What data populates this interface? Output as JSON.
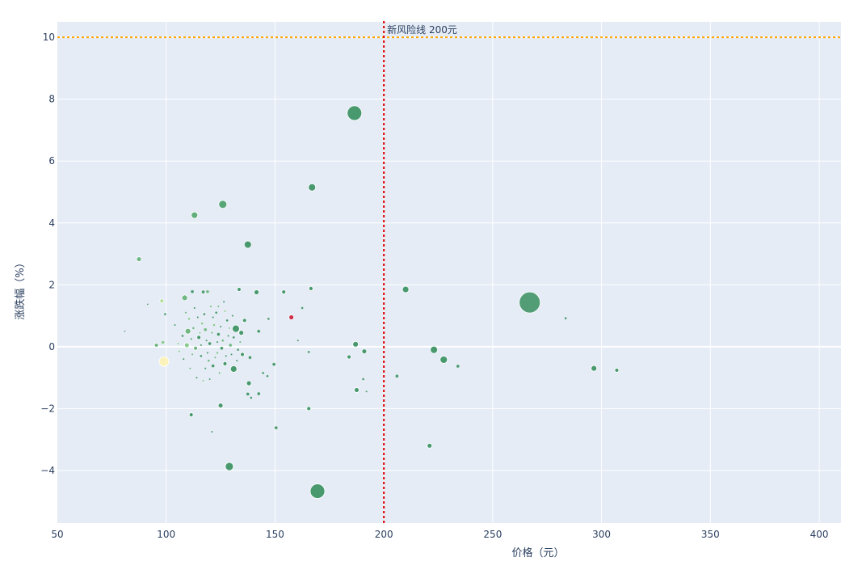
{
  "chart_data": {
    "type": "scatter",
    "xlabel": "价格（元）",
    "ylabel": "涨跌幅（%）",
    "xlim": [
      50,
      410
    ],
    "ylim": [
      -5.7,
      10.5
    ],
    "x_ticks": [
      50,
      100,
      150,
      200,
      250,
      300,
      350,
      400
    ],
    "y_ticks": [
      -4,
      -2,
      0,
      2,
      4,
      6,
      8,
      10
    ],
    "grid": true,
    "colors": {
      "plot_bg": "#e5ecf6",
      "grid": "#ffffff",
      "text": "#2a3f5f",
      "hline": "#ffa500",
      "vline": "#dd0000"
    },
    "reference_lines": {
      "horizontal": {
        "y": 10
      },
      "vertical": {
        "x": 200,
        "label": "新风险线 200元"
      }
    },
    "points": [
      {
        "x": 186.5,
        "y": 7.55,
        "s": 9,
        "c": "#2e8b57"
      },
      {
        "x": 267,
        "y": 1.43,
        "s": 13,
        "c": "#3a8f5f"
      },
      {
        "x": 169.5,
        "y": -4.67,
        "s": 9,
        "c": "#2e8b57"
      },
      {
        "x": 167,
        "y": 5.15,
        "s": 4.5,
        "c": "#2e8b57"
      },
      {
        "x": 126,
        "y": 4.6,
        "s": 5,
        "c": "#3f9a62"
      },
      {
        "x": 113,
        "y": 4.25,
        "s": 4,
        "c": "#4aa366"
      },
      {
        "x": 137.5,
        "y": 3.3,
        "s": 4.5,
        "c": "#2e8b57"
      },
      {
        "x": 87.5,
        "y": 2.83,
        "s": 3,
        "c": "#5cae6e"
      },
      {
        "x": 129,
        "y": -3.87,
        "s": 5,
        "c": "#2e8b57"
      },
      {
        "x": 210,
        "y": 1.85,
        "s": 4,
        "c": "#2e8b57"
      },
      {
        "x": 223,
        "y": -0.1,
        "s": 4.5,
        "c": "#2e8b57"
      },
      {
        "x": 227.5,
        "y": -0.42,
        "s": 4.5,
        "c": "#2e8b57"
      },
      {
        "x": 296.5,
        "y": -0.7,
        "s": 3.5,
        "c": "#2e8b57"
      },
      {
        "x": 307,
        "y": -0.76,
        "s": 2.5,
        "c": "#2e8b57"
      },
      {
        "x": 283.5,
        "y": 0.92,
        "s": 1.5,
        "c": "#2e8b57"
      },
      {
        "x": 234,
        "y": -0.63,
        "s": 2,
        "c": "#2e8b57"
      },
      {
        "x": 221,
        "y": -3.2,
        "s": 3,
        "c": "#2e8b57"
      },
      {
        "x": 206,
        "y": -0.95,
        "s": 2,
        "c": "#2e8b57"
      },
      {
        "x": 187,
        "y": 0.08,
        "s": 3.5,
        "c": "#2e8b57"
      },
      {
        "x": 191,
        "y": -0.15,
        "s": 3,
        "c": "#2e8b57"
      },
      {
        "x": 184,
        "y": -0.33,
        "s": 2.5,
        "c": "#2e8b57"
      },
      {
        "x": 187.5,
        "y": -1.4,
        "s": 3,
        "c": "#2e8b57"
      },
      {
        "x": 190.5,
        "y": -1.05,
        "s": 1.5,
        "c": "#2e8b57"
      },
      {
        "x": 192,
        "y": -1.45,
        "s": 1.2,
        "c": "#2e8b57"
      },
      {
        "x": 166.5,
        "y": 1.88,
        "s": 2.5,
        "c": "#2e8b57"
      },
      {
        "x": 154,
        "y": 1.77,
        "s": 2.5,
        "c": "#2e8b57"
      },
      {
        "x": 141.5,
        "y": 1.76,
        "s": 3,
        "c": "#2e8b57"
      },
      {
        "x": 133.5,
        "y": 1.85,
        "s": 2.5,
        "c": "#2e8b57"
      },
      {
        "x": 157.5,
        "y": 0.95,
        "s": 3,
        "c": "#c8102e"
      },
      {
        "x": 162.5,
        "y": 1.25,
        "s": 1.5,
        "c": "#2e8b57"
      },
      {
        "x": 165.5,
        "y": -2.0,
        "s": 2.5,
        "c": "#2e8b57"
      },
      {
        "x": 150.5,
        "y": -2.62,
        "s": 2,
        "c": "#2e8b57"
      },
      {
        "x": 165.5,
        "y": -0.17,
        "s": 1.5,
        "c": "#2e8b57"
      },
      {
        "x": 160.5,
        "y": 0.2,
        "s": 1.2,
        "c": "#2e8b57"
      },
      {
        "x": 149.5,
        "y": -0.57,
        "s": 2,
        "c": "#2e8b57"
      },
      {
        "x": 131,
        "y": -0.72,
        "s": 4,
        "c": "#2e8b57"
      },
      {
        "x": 132,
        "y": 0.58,
        "s": 4.5,
        "c": "#2e8b57"
      },
      {
        "x": 138,
        "y": -1.18,
        "s": 3,
        "c": "#2e8b57"
      },
      {
        "x": 125,
        "y": -1.9,
        "s": 3,
        "c": "#2e8b57"
      },
      {
        "x": 111.5,
        "y": -2.2,
        "s": 2.5,
        "c": "#2e8b57"
      },
      {
        "x": 121,
        "y": -2.75,
        "s": 1.2,
        "c": "#2e8b57"
      },
      {
        "x": 99,
        "y": -0.48,
        "s": 6,
        "c": "#fff3b0"
      },
      {
        "x": 98.5,
        "y": 0.14,
        "s": 2,
        "c": "#7bc47f"
      },
      {
        "x": 98,
        "y": 1.48,
        "s": 2.5,
        "c": "#a8d98a"
      },
      {
        "x": 95.5,
        "y": 0.05,
        "s": 2.5,
        "c": "#5cae6e"
      },
      {
        "x": 108.5,
        "y": 1.58,
        "s": 3.5,
        "c": "#5cae6e"
      },
      {
        "x": 110,
        "y": 0.5,
        "s": 3.5,
        "c": "#5cae6e"
      },
      {
        "x": 109.5,
        "y": 0.05,
        "s": 3,
        "c": "#7bc47f"
      },
      {
        "x": 134.5,
        "y": 0.45,
        "s": 3,
        "c": "#2e8b57"
      },
      {
        "x": 135,
        "y": -0.25,
        "s": 2.5,
        "c": "#2e8b57"
      },
      {
        "x": 136,
        "y": 0.85,
        "s": 2.5,
        "c": "#2e8b57"
      },
      {
        "x": 142.5,
        "y": 0.5,
        "s": 2,
        "c": "#2e8b57"
      },
      {
        "x": 147,
        "y": 0.9,
        "s": 1.5,
        "c": "#2e8b57"
      },
      {
        "x": 138.5,
        "y": -0.35,
        "s": 2,
        "c": "#2e8b57"
      },
      {
        "x": 144.5,
        "y": -0.85,
        "s": 1.5,
        "c": "#2e8b57"
      },
      {
        "x": 146.5,
        "y": -0.95,
        "s": 1.5,
        "c": "#2e8b57"
      },
      {
        "x": 142.5,
        "y": -1.52,
        "s": 2,
        "c": "#2e8b57"
      },
      {
        "x": 137.5,
        "y": -1.53,
        "s": 2,
        "c": "#2e8b57"
      },
      {
        "x": 139,
        "y": -1.65,
        "s": 1.5,
        "c": "#2e8b57"
      },
      {
        "x": 127,
        "y": -0.55,
        "s": 2.5,
        "c": "#2e8b57"
      },
      {
        "x": 117,
        "y": 1.77,
        "s": 2,
        "c": "#2e8b57"
      },
      {
        "x": 119,
        "y": 1.78,
        "s": 2,
        "c": "#5cae6e"
      },
      {
        "x": 112,
        "y": 1.78,
        "s": 2,
        "c": "#2e8b57"
      },
      {
        "x": 91.5,
        "y": 1.37,
        "s": 1,
        "c": "#2e8b57"
      },
      {
        "x": 99.5,
        "y": 1.05,
        "s": 1.5,
        "c": "#2e8b57"
      },
      {
        "x": 81,
        "y": 0.5,
        "s": 1,
        "c": "#2e8b57"
      },
      {
        "x": 115,
        "y": 0.3,
        "s": 2.5,
        "c": "#2e8b57"
      },
      {
        "x": 118,
        "y": 0.55,
        "s": 2,
        "c": "#5cae6e"
      },
      {
        "x": 120,
        "y": 0.1,
        "s": 2,
        "c": "#2e8b57"
      },
      {
        "x": 122,
        "y": 0.7,
        "s": 1.5,
        "c": "#7bc47f"
      },
      {
        "x": 124,
        "y": 0.4,
        "s": 2,
        "c": "#2e8b57"
      },
      {
        "x": 126,
        "y": 0.2,
        "s": 1.5,
        "c": "#5cae6e"
      },
      {
        "x": 128,
        "y": 0.85,
        "s": 1.5,
        "c": "#2e8b57"
      },
      {
        "x": 113.5,
        "y": -0.05,
        "s": 2.5,
        "c": "#5cae6e"
      },
      {
        "x": 116,
        "y": -0.3,
        "s": 1.5,
        "c": "#2e8b57"
      },
      {
        "x": 119.5,
        "y": -0.45,
        "s": 1.5,
        "c": "#5cae6e"
      },
      {
        "x": 121.5,
        "y": -0.62,
        "s": 2,
        "c": "#2e8b57"
      },
      {
        "x": 123.5,
        "y": -0.2,
        "s": 1.5,
        "c": "#7bc47f"
      },
      {
        "x": 125.5,
        "y": -0.05,
        "s": 2,
        "c": "#2e8b57"
      },
      {
        "x": 129.5,
        "y": 0.05,
        "s": 2,
        "c": "#5cae6e"
      },
      {
        "x": 131,
        "y": 0.3,
        "s": 1.5,
        "c": "#2e8b57"
      },
      {
        "x": 133,
        "y": -0.1,
        "s": 1.5,
        "c": "#2e8b57"
      },
      {
        "x": 117.5,
        "y": 1.05,
        "s": 1.5,
        "c": "#2e8b57"
      },
      {
        "x": 120.5,
        "y": 1.3,
        "s": 1.2,
        "c": "#5cae6e"
      },
      {
        "x": 123,
        "y": 1.1,
        "s": 1.5,
        "c": "#2e8b57"
      },
      {
        "x": 126.5,
        "y": 1.45,
        "s": 1.2,
        "c": "#2e8b57"
      },
      {
        "x": 110.5,
        "y": 0.9,
        "s": 1.5,
        "c": "#7bc47f"
      },
      {
        "x": 112.5,
        "y": 0.6,
        "s": 1.5,
        "c": "#5cae6e"
      },
      {
        "x": 114.5,
        "y": 0.95,
        "s": 1.2,
        "c": "#2e8b57"
      },
      {
        "x": 116.5,
        "y": 0.75,
        "s": 1.5,
        "c": "#7bc47f"
      },
      {
        "x": 107.5,
        "y": 0.35,
        "s": 1.5,
        "c": "#2e8b57"
      },
      {
        "x": 106,
        "y": -0.15,
        "s": 1.2,
        "c": "#7bc47f"
      },
      {
        "x": 108,
        "y": -0.4,
        "s": 1.2,
        "c": "#2e8b57"
      },
      {
        "x": 111,
        "y": -0.7,
        "s": 1.2,
        "c": "#5cae6e"
      },
      {
        "x": 114,
        "y": -1.0,
        "s": 1.2,
        "c": "#2e8b57"
      },
      {
        "x": 117,
        "y": -1.1,
        "s": 1.2,
        "c": "#7bc47f"
      },
      {
        "x": 120,
        "y": -1.05,
        "s": 1.2,
        "c": "#2e8b57"
      },
      {
        "x": 124.5,
        "y": -0.85,
        "s": 1.2,
        "c": "#5cae6e"
      },
      {
        "x": 127.5,
        "y": -0.3,
        "s": 1.2,
        "c": "#2e8b57"
      },
      {
        "x": 129,
        "y": 0.6,
        "s": 1.2,
        "c": "#7bc47f"
      },
      {
        "x": 130.5,
        "y": 1.0,
        "s": 1.2,
        "c": "#2e8b57"
      },
      {
        "x": 118.5,
        "y": 0.2,
        "s": 1.2,
        "c": "#2e8b57"
      },
      {
        "x": 121,
        "y": 0.45,
        "s": 1.2,
        "c": "#5cae6e"
      },
      {
        "x": 123.5,
        "y": 0.15,
        "s": 1.2,
        "c": "#2e8b57"
      },
      {
        "x": 115.5,
        "y": 0.45,
        "s": 1.2,
        "c": "#7bc47f"
      },
      {
        "x": 119,
        "y": -0.2,
        "s": 1.2,
        "c": "#2e8b57"
      },
      {
        "x": 122.5,
        "y": -0.35,
        "s": 1.2,
        "c": "#5cae6e"
      },
      {
        "x": 125,
        "y": 0.65,
        "s": 1.2,
        "c": "#2e8b57"
      },
      {
        "x": 127,
        "y": 1.15,
        "s": 1.2,
        "c": "#7bc47f"
      },
      {
        "x": 113,
        "y": 1.25,
        "s": 1.2,
        "c": "#2e8b57"
      },
      {
        "x": 109,
        "y": 1.1,
        "s": 1.2,
        "c": "#5cae6e"
      },
      {
        "x": 104,
        "y": 0.7,
        "s": 1.2,
        "c": "#2e8b57"
      },
      {
        "x": 105.5,
        "y": 0.1,
        "s": 1.2,
        "c": "#7bc47f"
      },
      {
        "x": 132.5,
        "y": -0.45,
        "s": 1.2,
        "c": "#2e8b57"
      },
      {
        "x": 134,
        "y": 0.15,
        "s": 1.2,
        "c": "#5cae6e"
      },
      {
        "x": 130,
        "y": -0.25,
        "s": 1.2,
        "c": "#2e8b57"
      },
      {
        "x": 116,
        "y": 0.05,
        "s": 1.2,
        "c": "#2e8b57"
      },
      {
        "x": 112,
        "y": -0.25,
        "s": 1.2,
        "c": "#5cae6e"
      },
      {
        "x": 118,
        "y": -0.7,
        "s": 1.2,
        "c": "#2e8b57"
      },
      {
        "x": 121.5,
        "y": 0.95,
        "s": 1.2,
        "c": "#2e8b57"
      },
      {
        "x": 124,
        "y": 1.3,
        "s": 1.2,
        "c": "#5cae6e"
      },
      {
        "x": 128.5,
        "y": 0.35,
        "s": 1.2,
        "c": "#2e8b57"
      },
      {
        "x": 111.5,
        "y": 0.25,
        "s": 1.2,
        "c": "#2e8b57"
      }
    ]
  }
}
